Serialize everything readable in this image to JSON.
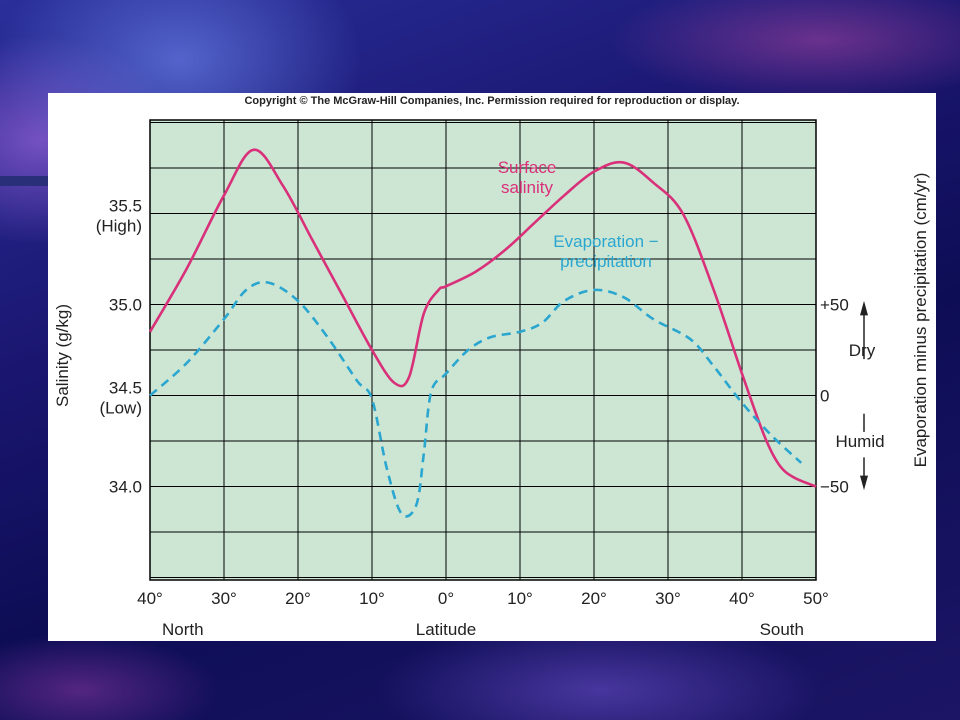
{
  "copyright": "Copyright © The McGraw-Hill Companies, Inc. Permission required for reproduction or display.",
  "colors": {
    "plot_background": "#cde6d4",
    "salinity_line": "#d9307a",
    "evaporation_line": "#2aa6cf",
    "grid": "#000000"
  },
  "chart_data": {
    "type": "line",
    "xlabel": "Latitude",
    "x_ticks": [
      "40°",
      "30°",
      "20°",
      "10°",
      "0°",
      "10°",
      "20°",
      "30°",
      "40°",
      "50°"
    ],
    "x_tick_values": [
      -40,
      -30,
      -20,
      -10,
      0,
      10,
      20,
      30,
      40,
      50
    ],
    "x_end_labels": {
      "left": "North",
      "right": "South"
    },
    "xlim": [
      -40,
      50
    ],
    "ylabel": "Salinity (g/kg)",
    "ylim": [
      33.5,
      36.0
    ],
    "y_ticks": [
      {
        "value": 35.5,
        "label": "35.5",
        "sublabel": "(High)"
      },
      {
        "value": 35.0,
        "label": "35.0",
        "sublabel": ""
      },
      {
        "value": 34.5,
        "label": "34.5",
        "sublabel": "(Low)"
      },
      {
        "value": 34.0,
        "label": "34.0",
        "sublabel": ""
      }
    ],
    "y2label": "Evaporation minus precipitation (cm/yr)",
    "y2_ticks": [
      {
        "value": 50,
        "label": "+50"
      },
      {
        "value": 0,
        "label": "0"
      },
      {
        "value": -50,
        "label": "−50"
      }
    ],
    "y2_annotations": {
      "dry": "Dry",
      "humid": "Humid"
    },
    "series": [
      {
        "name": "Surface salinity",
        "label_lines": [
          "Surface",
          "salinity"
        ],
        "style": "solid",
        "axis": "left",
        "x": [
          -40,
          -35,
          -30,
          -26,
          -22,
          -18,
          -14,
          -10,
          -7,
          -5,
          -3,
          -1,
          0,
          4,
          8,
          12,
          16,
          20,
          24,
          28,
          32,
          36,
          40,
          43,
          45,
          47,
          50
        ],
        "y": [
          34.85,
          35.2,
          35.6,
          35.85,
          35.65,
          35.35,
          35.05,
          34.75,
          34.57,
          34.6,
          34.95,
          35.08,
          35.1,
          35.18,
          35.3,
          35.45,
          35.6,
          35.73,
          35.78,
          35.67,
          35.5,
          35.1,
          34.62,
          34.28,
          34.12,
          34.05,
          34.0
        ]
      },
      {
        "name": "Evaporation − precipitation",
        "label_lines": [
          "Evaporation −",
          "precipitation"
        ],
        "style": "dashed",
        "axis": "right",
        "x": [
          -40,
          -35,
          -30,
          -27,
          -24,
          -20,
          -16,
          -12,
          -10,
          -8,
          -6,
          -4,
          -3,
          -2,
          0,
          3,
          6,
          10,
          13,
          16,
          20,
          24,
          28,
          33,
          36,
          40,
          44,
          48
        ],
        "y": [
          0,
          18,
          42,
          58,
          62,
          52,
          32,
          8,
          -2,
          -40,
          -65,
          -60,
          -32,
          2,
          12,
          25,
          32,
          35,
          40,
          52,
          58,
          54,
          42,
          31,
          17,
          -4,
          -22,
          -37
        ]
      }
    ]
  }
}
